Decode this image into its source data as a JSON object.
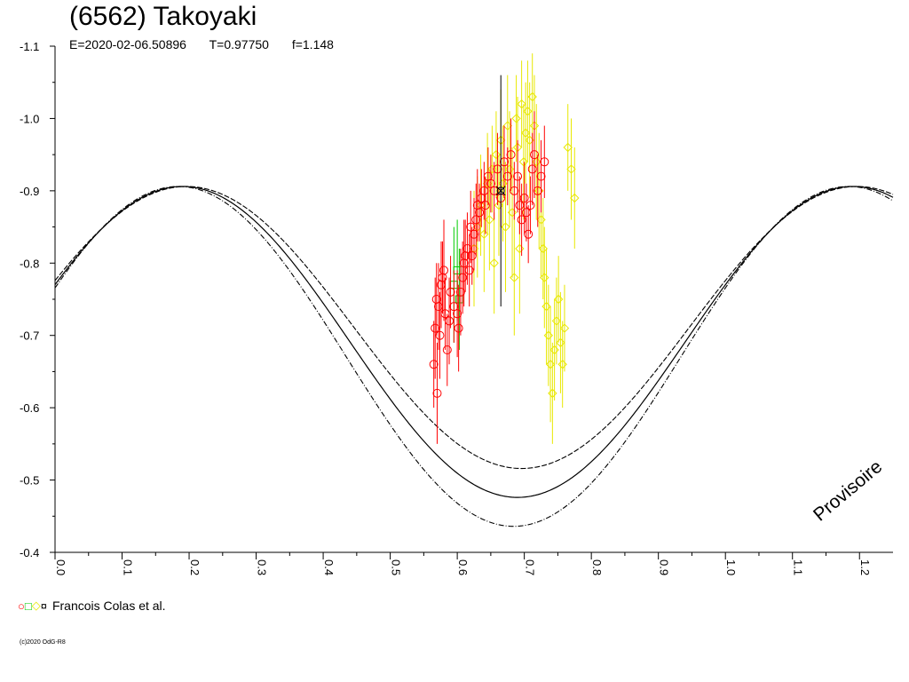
{
  "title": "(6562) Takoyaki",
  "epoch": "E=2020-02-06.50896",
  "period": "T=0.97750",
  "factor": "f=1.148",
  "legend": {
    "symbols": [
      {
        "glyph": "○",
        "color": "#ff0000"
      },
      {
        "glyph": "□",
        "color": "#00cc00"
      },
      {
        "glyph": "◇",
        "color": "#e8e800"
      },
      {
        "glyph": "¤",
        "color": "#000000"
      }
    ],
    "author": "Francois Colas et al."
  },
  "copyright": "(c)2020 OdG-R8",
  "watermark": "Provisoire",
  "chart_data": {
    "type": "scatter",
    "xlim": [
      0.0,
      1.25
    ],
    "ylim": [
      -1.1,
      -0.4
    ],
    "y_inverted": true,
    "x_ticks": [
      "0.0",
      "0.1",
      "0.2",
      "0.3",
      "0.4",
      "0.5",
      "0.6",
      "0.7",
      "0.8",
      "0.9",
      "1.0",
      "1.1",
      "1.2"
    ],
    "y_ticks": [
      "-1.1",
      "-1.0",
      "-0.9",
      "-0.8",
      "-0.7",
      "-0.6",
      "-0.5",
      "-0.4"
    ],
    "model": {
      "mean": -0.691,
      "amplitude": 0.215,
      "phase_of_max": 0.19,
      "period": 1.0,
      "envelope_max": -0.911,
      "envelope_min": -0.476,
      "upper_envelope_amplitude": 0.195,
      "lower_envelope_amplitude": 0.235
    },
    "series": [
      {
        "symbol": "circle",
        "color": "#ff0000",
        "points": [
          [
            0.565,
            -0.66,
            0.06
          ],
          [
            0.567,
            -0.71,
            0.07
          ],
          [
            0.569,
            -0.75,
            0.05
          ],
          [
            0.57,
            -0.62,
            0.07
          ],
          [
            0.572,
            -0.74,
            0.06
          ],
          [
            0.574,
            -0.7,
            0.06
          ],
          [
            0.576,
            -0.77,
            0.06
          ],
          [
            0.578,
            -0.78,
            0.05
          ],
          [
            0.58,
            -0.79,
            0.07
          ],
          [
            0.582,
            -0.73,
            0.05
          ],
          [
            0.585,
            -0.68,
            0.05
          ],
          [
            0.588,
            -0.72,
            0.06
          ],
          [
            0.59,
            -0.76,
            0.05
          ],
          [
            0.595,
            -0.74,
            0.05
          ],
          [
            0.6,
            -0.73,
            0.06
          ],
          [
            0.602,
            -0.71,
            0.06
          ],
          [
            0.605,
            -0.76,
            0.06
          ],
          [
            0.608,
            -0.78,
            0.05
          ],
          [
            0.61,
            -0.8,
            0.06
          ],
          [
            0.612,
            -0.81,
            0.05
          ],
          [
            0.615,
            -0.82,
            0.05
          ],
          [
            0.618,
            -0.79,
            0.05
          ],
          [
            0.62,
            -0.85,
            0.05
          ],
          [
            0.622,
            -0.81,
            0.04
          ],
          [
            0.625,
            -0.84,
            0.05
          ],
          [
            0.628,
            -0.86,
            0.05
          ],
          [
            0.63,
            -0.88,
            0.05
          ],
          [
            0.633,
            -0.87,
            0.04
          ],
          [
            0.636,
            -0.89,
            0.04
          ],
          [
            0.64,
            -0.9,
            0.04
          ],
          [
            0.642,
            -0.88,
            0.04
          ],
          [
            0.646,
            -0.92,
            0.04
          ],
          [
            0.65,
            -0.91,
            0.04
          ],
          [
            0.655,
            -0.9,
            0.04
          ],
          [
            0.66,
            -0.93,
            0.05
          ],
          [
            0.665,
            -0.89,
            0.04
          ],
          [
            0.67,
            -0.94,
            0.05
          ],
          [
            0.675,
            -0.92,
            0.04
          ],
          [
            0.68,
            -0.95,
            0.05
          ],
          [
            0.685,
            -0.9,
            0.04
          ],
          [
            0.69,
            -0.92,
            0.05
          ],
          [
            0.693,
            -0.88,
            0.04
          ],
          [
            0.696,
            -0.86,
            0.05
          ],
          [
            0.7,
            -0.89,
            0.05
          ],
          [
            0.703,
            -0.87,
            0.04
          ],
          [
            0.706,
            -0.84,
            0.04
          ],
          [
            0.709,
            -0.88,
            0.04
          ],
          [
            0.712,
            -0.93,
            0.05
          ],
          [
            0.715,
            -0.95,
            0.06
          ],
          [
            0.72,
            -0.9,
            0.05
          ],
          [
            0.725,
            -0.92,
            0.05
          ],
          [
            0.73,
            -0.94,
            0.05
          ]
        ]
      },
      {
        "symbol": "square",
        "color": "#00cc00",
        "points": [
          [
            0.595,
            -0.77,
            0.08
          ],
          [
            0.6,
            -0.79,
            0.07
          ],
          [
            0.603,
            -0.75,
            0.07
          ]
        ]
      },
      {
        "symbol": "diamond",
        "color": "#e8e800",
        "points": [
          [
            0.625,
            -0.82,
            0.08
          ],
          [
            0.63,
            -0.85,
            0.07
          ],
          [
            0.635,
            -0.88,
            0.07
          ],
          [
            0.64,
            -0.84,
            0.08
          ],
          [
            0.645,
            -0.91,
            0.07
          ],
          [
            0.648,
            -0.86,
            0.07
          ],
          [
            0.652,
            -0.93,
            0.06
          ],
          [
            0.655,
            -0.8,
            0.07
          ],
          [
            0.658,
            -0.95,
            0.06
          ],
          [
            0.662,
            -0.88,
            0.07
          ],
          [
            0.665,
            -0.97,
            0.07
          ],
          [
            0.668,
            -0.91,
            0.08
          ],
          [
            0.672,
            -0.85,
            0.09
          ],
          [
            0.675,
            -0.99,
            0.07
          ],
          [
            0.678,
            -0.93,
            0.08
          ],
          [
            0.682,
            -0.87,
            0.09
          ],
          [
            0.685,
            -0.78,
            0.08
          ],
          [
            0.688,
            -1.0,
            0.06
          ],
          [
            0.69,
            -0.96,
            0.07
          ],
          [
            0.693,
            -0.82,
            0.09
          ],
          [
            0.696,
            -1.02,
            0.06
          ],
          [
            0.699,
            -0.94,
            0.08
          ],
          [
            0.702,
            -0.98,
            0.07
          ],
          [
            0.705,
            -1.01,
            0.07
          ],
          [
            0.708,
            -0.97,
            0.08
          ],
          [
            0.712,
            -1.03,
            0.06
          ],
          [
            0.715,
            -0.99,
            0.07
          ],
          [
            0.718,
            -0.94,
            0.08
          ],
          [
            0.722,
            -0.9,
            0.08
          ],
          [
            0.725,
            -0.86,
            0.08
          ],
          [
            0.728,
            -0.82,
            0.07
          ],
          [
            0.73,
            -0.78,
            0.07
          ],
          [
            0.733,
            -0.74,
            0.08
          ],
          [
            0.736,
            -0.7,
            0.07
          ],
          [
            0.739,
            -0.66,
            0.08
          ],
          [
            0.742,
            -0.62,
            0.07
          ],
          [
            0.745,
            -0.68,
            0.07
          ],
          [
            0.748,
            -0.72,
            0.06
          ],
          [
            0.751,
            -0.75,
            0.06
          ],
          [
            0.754,
            -0.69,
            0.07
          ],
          [
            0.757,
            -0.66,
            0.06
          ],
          [
            0.76,
            -0.71,
            0.06
          ],
          [
            0.765,
            -0.96,
            0.06
          ],
          [
            0.77,
            -0.93,
            0.07
          ],
          [
            0.775,
            -0.89,
            0.07
          ]
        ]
      },
      {
        "symbol": "cross",
        "color": "#000000",
        "points": [
          [
            0.665,
            -0.9,
            0.16
          ]
        ]
      }
    ]
  }
}
